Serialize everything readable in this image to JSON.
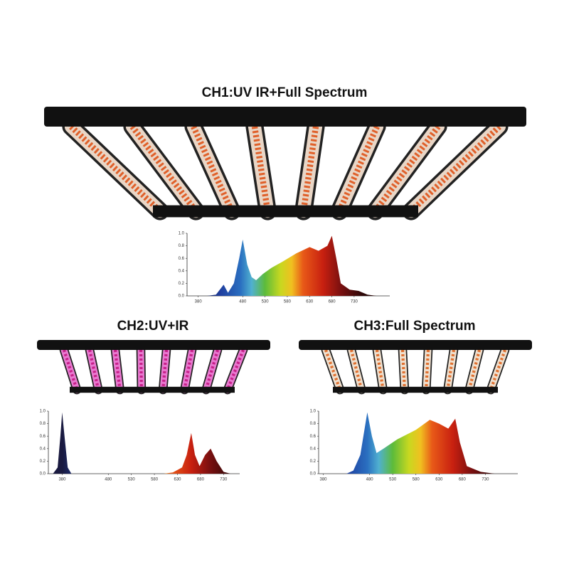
{
  "chart_data": [
    {
      "type": "area",
      "title": "CH1:UV IR+Full Spectrum",
      "x": [
        400,
        420,
        437,
        447,
        460,
        472,
        480,
        490,
        500,
        510,
        525,
        545,
        570,
        600,
        630,
        650,
        670,
        680,
        690,
        700,
        720,
        740,
        760,
        780
      ],
      "values": [
        0,
        0.02,
        0.18,
        0.05,
        0.2,
        0.6,
        0.9,
        0.5,
        0.3,
        0.25,
        0.35,
        0.45,
        0.55,
        0.68,
        0.78,
        0.72,
        0.8,
        0.96,
        0.6,
        0.2,
        0.1,
        0.08,
        0.02,
        0
      ],
      "xlim": [
        355,
        810
      ],
      "xticks": [
        380,
        480,
        530,
        580,
        630,
        680,
        730
      ],
      "ylim": [
        0,
        1
      ],
      "yticks": [
        {
          "value": 0,
          "label": "0.0"
        },
        0.2,
        0.4,
        0.6,
        0.8,
        {
          "value": 1,
          "label": "1.0"
        }
      ]
    },
    {
      "type": "area",
      "title": "CH2:UV+IR",
      "x": [
        360,
        370,
        376,
        380,
        385,
        392,
        400,
        600,
        620,
        640,
        650,
        660,
        668,
        678,
        690,
        702,
        715,
        730,
        745
      ],
      "values": [
        0,
        0.1,
        0.6,
        0.98,
        0.6,
        0.1,
        0,
        0,
        0.02,
        0.1,
        0.3,
        0.65,
        0.3,
        0.12,
        0.3,
        0.4,
        0.2,
        0.03,
        0
      ],
      "xlim": [
        350,
        765
      ],
      "xticks": [
        380,
        480,
        530,
        580,
        630,
        680,
        730
      ],
      "ylim": [
        0,
        1
      ],
      "yticks": [
        {
          "value": 0,
          "label": "0.0"
        },
        0.2,
        0.4,
        0.6,
        0.8,
        {
          "value": 1,
          "label": "1.0"
        }
      ]
    },
    {
      "type": "area",
      "title": "CH3:Full Spectrum",
      "x": [
        430,
        445,
        460,
        475,
        485,
        495,
        510,
        540,
        580,
        610,
        630,
        650,
        665,
        675,
        690,
        720,
        750
      ],
      "values": [
        0,
        0.05,
        0.3,
        0.98,
        0.6,
        0.33,
        0.4,
        0.55,
        0.7,
        0.86,
        0.8,
        0.72,
        0.88,
        0.5,
        0.12,
        0.03,
        0
      ],
      "xlim": [
        370,
        800
      ],
      "xticks": [
        380,
        480,
        530,
        580,
        630,
        680,
        730
      ],
      "ylim": [
        0,
        1
      ],
      "yticks": [
        {
          "value": 0,
          "label": "0.0"
        },
        0.2,
        0.4,
        0.6,
        0.8,
        {
          "value": 1,
          "label": "1.0"
        }
      ]
    }
  ]
}
